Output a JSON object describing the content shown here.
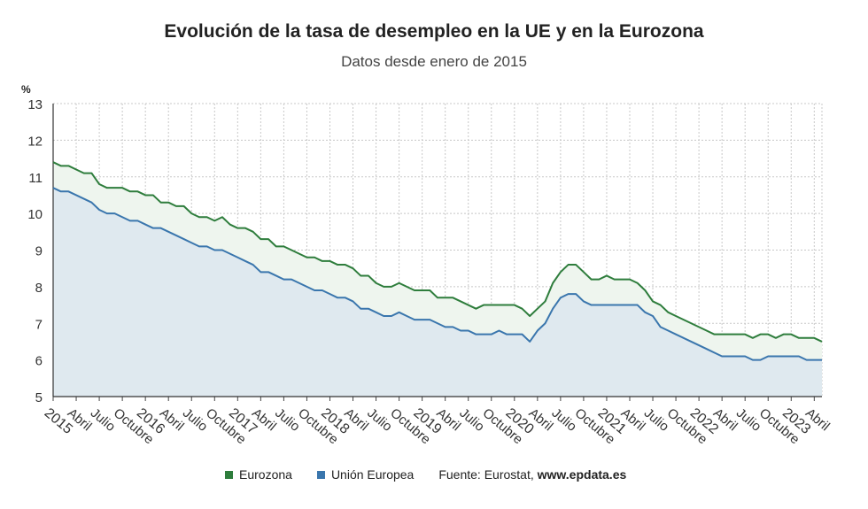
{
  "title": "Evolución de la tasa de desempleo en la UE y en la Eurozona",
  "subtitle": "Datos desde enero de 2015",
  "legend": {
    "items": [
      {
        "label": "Eurozona",
        "color": "#2e7d3c"
      },
      {
        "label": "Unión Europea",
        "color": "#3a76ad"
      }
    ],
    "source_prefix": "Fuente: Eurostat, ",
    "source_site": "www.epdata.es"
  },
  "chart_data": {
    "type": "line",
    "title": "Evolución de la tasa de desempleo en la UE y en la Eurozona",
    "subtitle": "Datos desde enero de 2015",
    "ylabel": "%",
    "xlabel": "",
    "ylim": [
      5,
      13
    ],
    "yticks": [
      5,
      6,
      7,
      8,
      9,
      10,
      11,
      12,
      13
    ],
    "grid": true,
    "legend_position": "bottom",
    "x_start": "2015-01",
    "x_end": "2023-04",
    "x_tick_labels": [
      "2015",
      "Abril",
      "Julio",
      "Octubre",
      "2016",
      "Abril",
      "Julio",
      "Octubre",
      "2017",
      "Abril",
      "Julio",
      "Octubre",
      "2018",
      "Abril",
      "Julio",
      "Octubre",
      "2019",
      "Abril",
      "Julio",
      "Octubre",
      "2020",
      "Abril",
      "Julio",
      "Octubre",
      "2021",
      "Abril",
      "Julio",
      "Octubre",
      "2022",
      "Abril",
      "Julio",
      "Octubre",
      "2023",
      "Abril"
    ],
    "series": [
      {
        "name": "Eurozona",
        "color": "#2e7d3c",
        "fill": "#eef5ee",
        "values": [
          11.4,
          11.3,
          11.3,
          11.2,
          11.1,
          11.1,
          10.8,
          10.7,
          10.7,
          10.7,
          10.6,
          10.6,
          10.5,
          10.5,
          10.3,
          10.3,
          10.2,
          10.2,
          10.0,
          9.9,
          9.9,
          9.8,
          9.9,
          9.7,
          9.6,
          9.6,
          9.5,
          9.3,
          9.3,
          9.1,
          9.1,
          9.0,
          8.9,
          8.8,
          8.8,
          8.7,
          8.7,
          8.6,
          8.6,
          8.5,
          8.3,
          8.3,
          8.1,
          8.0,
          8.0,
          8.1,
          8.0,
          7.9,
          7.9,
          7.9,
          7.7,
          7.7,
          7.7,
          7.6,
          7.5,
          7.4,
          7.5,
          7.5,
          7.5,
          7.5,
          7.5,
          7.4,
          7.2,
          7.4,
          7.6,
          8.1,
          8.4,
          8.6,
          8.6,
          8.4,
          8.2,
          8.2,
          8.3,
          8.2,
          8.2,
          8.2,
          8.1,
          7.9,
          7.6,
          7.5,
          7.3,
          7.2,
          7.1,
          7.0,
          6.9,
          6.8,
          6.7,
          6.7,
          6.7,
          6.7,
          6.7,
          6.6,
          6.7,
          6.7,
          6.6,
          6.7,
          6.7,
          6.6,
          6.6,
          6.6,
          6.5
        ]
      },
      {
        "name": "Unión Europea",
        "color": "#3a76ad",
        "fill": "#dfe9ef",
        "values": [
          10.7,
          10.6,
          10.6,
          10.5,
          10.4,
          10.3,
          10.1,
          10.0,
          10.0,
          9.9,
          9.8,
          9.8,
          9.7,
          9.6,
          9.6,
          9.5,
          9.4,
          9.3,
          9.2,
          9.1,
          9.1,
          9.0,
          9.0,
          8.9,
          8.8,
          8.7,
          8.6,
          8.4,
          8.4,
          8.3,
          8.2,
          8.2,
          8.1,
          8.0,
          7.9,
          7.9,
          7.8,
          7.7,
          7.7,
          7.6,
          7.4,
          7.4,
          7.3,
          7.2,
          7.2,
          7.3,
          7.2,
          7.1,
          7.1,
          7.1,
          7.0,
          6.9,
          6.9,
          6.8,
          6.8,
          6.7,
          6.7,
          6.7,
          6.8,
          6.7,
          6.7,
          6.7,
          6.5,
          6.8,
          7.0,
          7.4,
          7.7,
          7.8,
          7.8,
          7.6,
          7.5,
          7.5,
          7.5,
          7.5,
          7.5,
          7.5,
          7.5,
          7.3,
          7.2,
          6.9,
          6.8,
          6.7,
          6.6,
          6.5,
          6.4,
          6.3,
          6.2,
          6.1,
          6.1,
          6.1,
          6.1,
          6.0,
          6.0,
          6.1,
          6.1,
          6.1,
          6.1,
          6.1,
          6.0,
          6.0,
          6.0
        ]
      }
    ]
  }
}
